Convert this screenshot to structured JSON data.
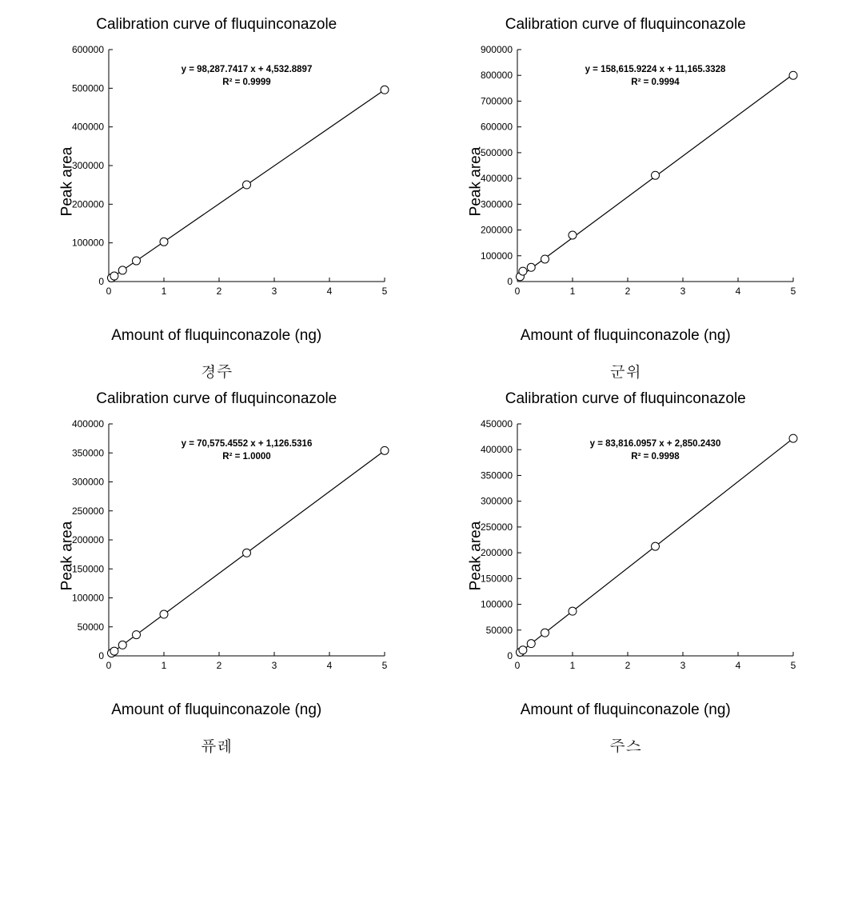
{
  "global": {
    "title": "Calibration curve of fluquinconazole",
    "xlabel": "Amount of fluquinconazole (ng)",
    "ylabel": "Peak area",
    "background_color": "#ffffff",
    "axis_color": "#000000",
    "line_color": "#000000",
    "marker_stroke": "#000000",
    "marker_fill": "#ffffff",
    "marker_radius": 5,
    "line_width": 1.2,
    "axis_width": 1,
    "tick_fontsize": 12,
    "title_fontsize": 19,
    "label_fontsize": 19,
    "eq_fontsize": 11.5,
    "sublabel_fontsize": 20
  },
  "charts": [
    {
      "sublabel": "경주",
      "equation": "y = 98,287.7417  x + 4,532.8897",
      "r2": "R² = 0.9999",
      "slope": 98287.7417,
      "intercept": 4532.8897,
      "xlim": [
        0,
        5
      ],
      "ylim": [
        0,
        600000
      ],
      "xticks": [
        0,
        1,
        2,
        3,
        4,
        5
      ],
      "yticks": [
        0,
        100000,
        200000,
        300000,
        400000,
        500000,
        600000
      ],
      "x": [
        0.05,
        0.1,
        0.25,
        0.5,
        1,
        2.5,
        5
      ],
      "y": [
        9447,
        14362,
        29105,
        53677,
        102821,
        250252,
        495972
      ]
    },
    {
      "sublabel": "군위",
      "equation": "y = 158,615.9224  x + 11,165.3328",
      "r2": "R² = 0.9994",
      "slope": 158615.9224,
      "intercept": 11165.3328,
      "xlim": [
        0,
        5
      ],
      "ylim": [
        0,
        900000
      ],
      "xticks": [
        0,
        1,
        2,
        3,
        4,
        5
      ],
      "yticks": [
        0,
        100000,
        200000,
        300000,
        400000,
        500000,
        600000,
        700000,
        800000,
        900000
      ],
      "x": [
        0.05,
        0.1,
        0.25,
        0.5,
        1,
        2.5,
        5
      ],
      "y": [
        19096,
        40000,
        55000,
        87000,
        180000,
        412000,
        800000
      ]
    },
    {
      "sublabel": "퓨레",
      "equation": "y = 70,575.4552  x + 1,126.5316",
      "r2": "R² = 1.0000",
      "slope": 70575.4552,
      "intercept": 1126.5316,
      "xlim": [
        0,
        5
      ],
      "ylim": [
        0,
        400000
      ],
      "xticks": [
        0,
        1,
        2,
        3,
        4,
        5
      ],
      "yticks": [
        0,
        50000,
        100000,
        150000,
        200000,
        250000,
        300000,
        350000,
        400000
      ],
      "x": [
        0.05,
        0.1,
        0.25,
        0.5,
        1,
        2.5,
        5
      ],
      "y": [
        4655,
        8184,
        18770,
        36414,
        71702,
        177565,
        354004
      ]
    },
    {
      "sublabel": "주스",
      "equation": "y = 83,816.0957  x + 2,850.2430",
      "r2": "R² = 0.9998",
      "slope": 83816.0957,
      "intercept": 2850.243,
      "xlim": [
        0,
        5
      ],
      "ylim": [
        0,
        450000
      ],
      "xticks": [
        0,
        1,
        2,
        3,
        4,
        5
      ],
      "yticks": [
        0,
        50000,
        100000,
        150000,
        200000,
        250000,
        300000,
        350000,
        400000,
        450000
      ],
      "x": [
        0.05,
        0.1,
        0.25,
        0.5,
        1,
        2.5,
        5
      ],
      "y": [
        7041,
        11232,
        23804,
        44758,
        86666,
        212390,
        421931
      ]
    }
  ]
}
